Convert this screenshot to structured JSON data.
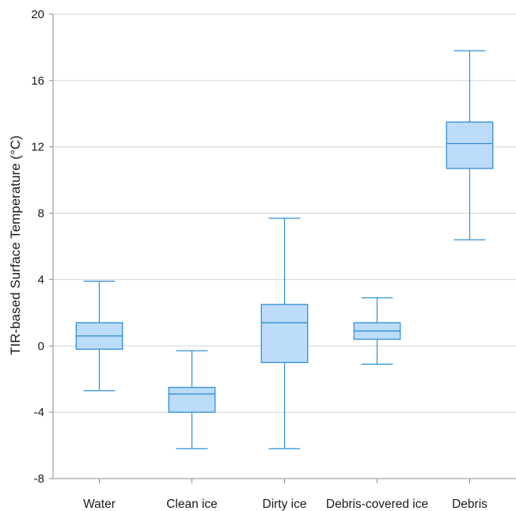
{
  "chart_data": {
    "type": "boxplot",
    "title": "",
    "xlabel": "",
    "ylabel": "TIR-based Surface Temperature (°C)",
    "ylim": [
      -8,
      20
    ],
    "yticks": [
      -8,
      -4,
      0,
      4,
      8,
      12,
      16,
      20
    ],
    "ytick_labels": [
      "-8",
      "-4",
      "0",
      "4",
      "8",
      "12",
      "16",
      "20"
    ],
    "grid": "horizontal",
    "categories": [
      "Water",
      "Clean ice",
      "Dirty ice",
      "Debris-covered ice",
      "Debris"
    ],
    "boxes": [
      {
        "category": "Water",
        "min": -2.7,
        "q1": -0.2,
        "median": 0.6,
        "q3": 1.4,
        "max": 3.9
      },
      {
        "category": "Clean ice",
        "min": -6.2,
        "q1": -4.0,
        "median": -2.9,
        "q3": -2.5,
        "max": -0.3
      },
      {
        "category": "Dirty ice",
        "min": -6.2,
        "q1": -1.0,
        "median": 1.4,
        "q3": 2.5,
        "max": 7.7
      },
      {
        "category": "Debris-covered ice",
        "min": -1.1,
        "q1": 0.4,
        "median": 0.9,
        "q3": 1.4,
        "max": 2.9
      },
      {
        "category": "Debris",
        "min": 6.4,
        "q1": 10.7,
        "median": 12.2,
        "q3": 13.5,
        "max": 17.8
      }
    ],
    "colors": {
      "box_fill": "#bcdcfa",
      "box_stroke": "#2f8fd8",
      "grid": "#d4d4d4",
      "axis": "#8c8c8c"
    }
  }
}
